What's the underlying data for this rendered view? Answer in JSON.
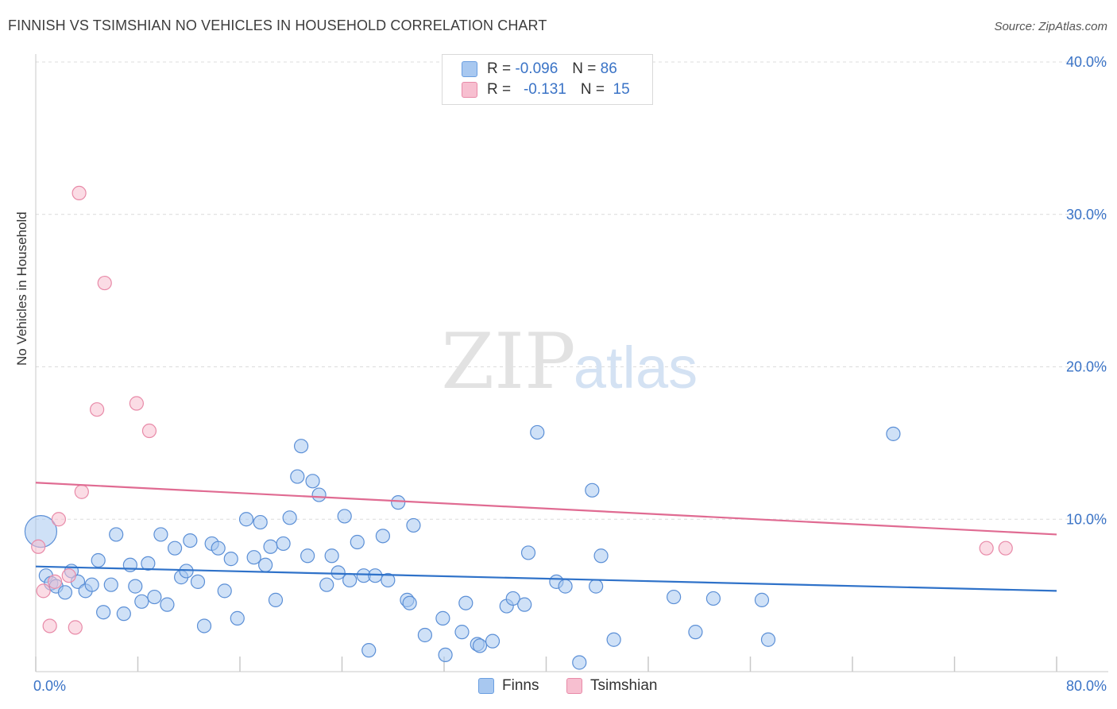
{
  "header": {
    "title": "FINNISH VS TSIMSHIAN NO VEHICLES IN HOUSEHOLD CORRELATION CHART",
    "source": "Source: ZipAtlas.com"
  },
  "watermark": {
    "zip": "ZIP",
    "atlas": "atlas"
  },
  "legend": {
    "rows": [
      {
        "r_label": "R =",
        "r_value": "-0.096",
        "n_label": "N =",
        "n_value": "86",
        "color": "#a8c8f0",
        "stroke": "#6a9ee0"
      },
      {
        "r_label": "R =",
        "r_value": "-0.131",
        "n_label": "N =",
        "n_value": "15",
        "color": "#f7bfd0",
        "stroke": "#e88aa8"
      }
    ]
  },
  "bottom_legend": [
    {
      "label": "Finns",
      "color": "#a8c8f0",
      "stroke": "#6a9ee0"
    },
    {
      "label": "Tsimshian",
      "color": "#f7bfd0",
      "stroke": "#e88aa8"
    }
  ],
  "chart_data": {
    "type": "scatter",
    "title": "FINNISH VS TSIMSHIAN NO VEHICLES IN HOUSEHOLD CORRELATION CHART",
    "xlabel": "",
    "ylabel": "No Vehicles in Household",
    "xlim": [
      0,
      80
    ],
    "ylim": [
      0,
      40
    ],
    "x_tick_labels": [
      {
        "value": 0,
        "label": "0.0%"
      },
      {
        "value": 80,
        "label": "80.0%"
      }
    ],
    "y_tick_labels": [
      {
        "value": 10,
        "label": "10.0%"
      },
      {
        "value": 20,
        "label": "20.0%"
      },
      {
        "value": 30,
        "label": "30.0%"
      },
      {
        "value": 40,
        "label": "40.0%"
      }
    ],
    "grid": true,
    "series": [
      {
        "name": "Finns",
        "color": "#a8c8f0",
        "stroke": "#5b8fd6",
        "line_color": "#2f72c9",
        "trend": {
          "x": [
            0,
            80
          ],
          "y": [
            6.9,
            5.3
          ]
        },
        "points": [
          {
            "x": 0.4,
            "y": 9.2,
            "big": true
          },
          {
            "x": 0.8,
            "y": 6.3
          },
          {
            "x": 1.2,
            "y": 5.8
          },
          {
            "x": 1.6,
            "y": 5.6
          },
          {
            "x": 2.3,
            "y": 5.2
          },
          {
            "x": 2.8,
            "y": 6.6
          },
          {
            "x": 3.3,
            "y": 5.9
          },
          {
            "x": 3.9,
            "y": 5.3
          },
          {
            "x": 4.4,
            "y": 5.7
          },
          {
            "x": 4.9,
            "y": 7.3
          },
          {
            "x": 5.3,
            "y": 3.9
          },
          {
            "x": 5.9,
            "y": 5.7
          },
          {
            "x": 6.3,
            "y": 9.0
          },
          {
            "x": 6.9,
            "y": 3.8
          },
          {
            "x": 7.4,
            "y": 7.0
          },
          {
            "x": 7.8,
            "y": 5.6
          },
          {
            "x": 8.3,
            "y": 4.6
          },
          {
            "x": 8.8,
            "y": 7.1
          },
          {
            "x": 9.3,
            "y": 4.9
          },
          {
            "x": 9.8,
            "y": 9.0
          },
          {
            "x": 10.3,
            "y": 4.4
          },
          {
            "x": 10.9,
            "y": 8.1
          },
          {
            "x": 11.4,
            "y": 6.2
          },
          {
            "x": 11.8,
            "y": 6.6
          },
          {
            "x": 12.1,
            "y": 8.6
          },
          {
            "x": 12.7,
            "y": 5.9
          },
          {
            "x": 13.2,
            "y": 3.0
          },
          {
            "x": 13.8,
            "y": 8.4
          },
          {
            "x": 14.3,
            "y": 8.1
          },
          {
            "x": 14.8,
            "y": 5.3
          },
          {
            "x": 15.3,
            "y": 7.4
          },
          {
            "x": 15.8,
            "y": 3.5
          },
          {
            "x": 16.5,
            "y": 10.0
          },
          {
            "x": 17.1,
            "y": 7.5
          },
          {
            "x": 17.6,
            "y": 9.8
          },
          {
            "x": 18.0,
            "y": 7.0
          },
          {
            "x": 18.4,
            "y": 8.2
          },
          {
            "x": 18.8,
            "y": 4.7
          },
          {
            "x": 19.4,
            "y": 8.4
          },
          {
            "x": 19.9,
            "y": 10.1
          },
          {
            "x": 20.5,
            "y": 12.8
          },
          {
            "x": 20.8,
            "y": 14.8
          },
          {
            "x": 21.3,
            "y": 7.6
          },
          {
            "x": 21.7,
            "y": 12.5
          },
          {
            "x": 22.2,
            "y": 11.6
          },
          {
            "x": 22.8,
            "y": 5.7
          },
          {
            "x": 23.2,
            "y": 7.6
          },
          {
            "x": 23.7,
            "y": 6.5
          },
          {
            "x": 24.2,
            "y": 10.2
          },
          {
            "x": 24.6,
            "y": 6.0
          },
          {
            "x": 25.2,
            "y": 8.5
          },
          {
            "x": 25.7,
            "y": 6.3
          },
          {
            "x": 26.1,
            "y": 1.4
          },
          {
            "x": 26.6,
            "y": 6.3
          },
          {
            "x": 27.2,
            "y": 8.9
          },
          {
            "x": 27.6,
            "y": 6.0
          },
          {
            "x": 28.4,
            "y": 11.1
          },
          {
            "x": 29.1,
            "y": 4.7
          },
          {
            "x": 29.3,
            "y": 4.5
          },
          {
            "x": 29.6,
            "y": 9.6
          },
          {
            "x": 30.5,
            "y": 2.4
          },
          {
            "x": 31.9,
            "y": 3.5
          },
          {
            "x": 32.1,
            "y": 1.1
          },
          {
            "x": 33.4,
            "y": 2.6
          },
          {
            "x": 33.7,
            "y": 4.5
          },
          {
            "x": 34.6,
            "y": 1.8
          },
          {
            "x": 34.8,
            "y": 1.7
          },
          {
            "x": 35.8,
            "y": 2.0
          },
          {
            "x": 36.9,
            "y": 4.3
          },
          {
            "x": 37.4,
            "y": 4.8
          },
          {
            "x": 38.3,
            "y": 4.4
          },
          {
            "x": 38.6,
            "y": 7.8
          },
          {
            "x": 39.3,
            "y": 15.7
          },
          {
            "x": 40.8,
            "y": 5.9
          },
          {
            "x": 41.5,
            "y": 5.6
          },
          {
            "x": 42.6,
            "y": 0.6
          },
          {
            "x": 43.6,
            "y": 11.9
          },
          {
            "x": 43.9,
            "y": 5.6
          },
          {
            "x": 44.3,
            "y": 7.6
          },
          {
            "x": 45.3,
            "y": 2.1
          },
          {
            "x": 50.0,
            "y": 4.9
          },
          {
            "x": 51.7,
            "y": 2.6
          },
          {
            "x": 53.1,
            "y": 4.8
          },
          {
            "x": 56.9,
            "y": 4.7
          },
          {
            "x": 57.4,
            "y": 2.1
          },
          {
            "x": 67.2,
            "y": 15.6
          }
        ]
      },
      {
        "name": "Tsimshian",
        "color": "#f7bfd0",
        "stroke": "#e88aa8",
        "line_color": "#e06b92",
        "trend": {
          "x": [
            0,
            80
          ],
          "y": [
            12.4,
            9.0
          ]
        },
        "points": [
          {
            "x": 0.2,
            "y": 8.2
          },
          {
            "x": 0.6,
            "y": 5.3
          },
          {
            "x": 1.1,
            "y": 3.0
          },
          {
            "x": 1.5,
            "y": 5.9
          },
          {
            "x": 1.8,
            "y": 10.0
          },
          {
            "x": 2.6,
            "y": 6.3
          },
          {
            "x": 3.1,
            "y": 2.9
          },
          {
            "x": 3.4,
            "y": 31.4
          },
          {
            "x": 3.6,
            "y": 11.8
          },
          {
            "x": 4.8,
            "y": 17.2
          },
          {
            "x": 5.4,
            "y": 25.5
          },
          {
            "x": 7.9,
            "y": 17.6
          },
          {
            "x": 8.9,
            "y": 15.8
          },
          {
            "x": 74.5,
            "y": 8.1
          },
          {
            "x": 76.0,
            "y": 8.1
          }
        ]
      }
    ]
  }
}
